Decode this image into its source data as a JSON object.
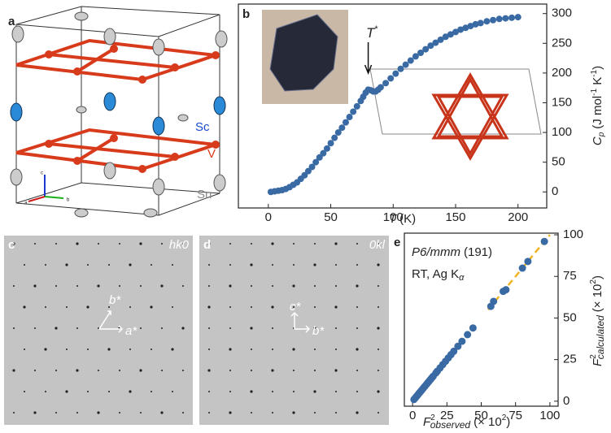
{
  "panel_labels": [
    "a",
    "b",
    "c",
    "d",
    "e"
  ],
  "structure": {
    "atoms": [
      "Sc",
      "V",
      "Sn"
    ],
    "axes": [
      "c",
      "a",
      "b"
    ]
  },
  "diffraction": [
    {
      "plane": "hk0",
      "vectors": [
        "b*",
        "a*"
      ]
    },
    {
      "plane": "0kl",
      "vectors": [
        "c*",
        "b*"
      ]
    }
  ],
  "chart_data": [
    {
      "type": "scatter",
      "color": "#3a6aa3",
      "x_label": [
        "T",
        "(K)"
      ],
      "y_label": [
        "C",
        "p",
        "(J mol",
        "-1",
        " K",
        "-1",
        ")"
      ],
      "annotation": [
        "T",
        "*"
      ],
      "annotation_x": 80,
      "x": [
        2,
        5,
        8,
        11,
        14,
        17,
        20,
        23,
        26,
        29,
        32,
        35,
        38,
        41,
        44,
        47,
        50,
        53,
        56,
        59,
        62,
        65,
        68,
        71,
        74,
        76,
        78,
        80,
        82,
        84,
        86,
        88,
        90,
        94,
        98,
        102,
        106,
        110,
        114,
        118,
        122,
        126,
        130,
        134,
        138,
        142,
        146,
        150,
        154,
        158,
        162,
        166,
        170,
        175,
        180,
        185,
        190,
        195,
        200
      ],
      "values": [
        0,
        1,
        2,
        3,
        5,
        8,
        12,
        16,
        22,
        28,
        35,
        42,
        50,
        58,
        65,
        73,
        82,
        91,
        100,
        108,
        117,
        126,
        135,
        144,
        153,
        160,
        167,
        172,
        171,
        169,
        169,
        172,
        176,
        183,
        191,
        199,
        207,
        214,
        221,
        228,
        234,
        240,
        246,
        251,
        256,
        261,
        265,
        269,
        273,
        276,
        279,
        282,
        284,
        287,
        289,
        291,
        292,
        293,
        294
      ],
      "xlim": [
        -24,
        223
      ],
      "ylim": [
        -27,
        316
      ],
      "xticks": [
        0,
        50,
        100,
        150,
        200
      ],
      "yticks": [
        0,
        50,
        100,
        150,
        200,
        250,
        300
      ]
    },
    {
      "type": "scatter",
      "color": "#3a6aa3",
      "annotations": [
        [
          "P6/mmm",
          "(191)"
        ],
        [
          "RT, Ag K",
          "α"
        ]
      ],
      "x_label": [
        "F",
        "2",
        "observed",
        "(× 10",
        "2",
        ")"
      ],
      "y_label": [
        "F",
        "2",
        "calculated",
        "(× 10",
        "2",
        ")"
      ],
      "x": [
        1,
        2,
        3,
        4,
        5,
        6,
        7,
        8,
        9,
        10,
        11,
        12,
        13,
        14,
        15,
        17,
        18,
        20,
        22,
        24,
        26,
        28,
        30,
        33,
        36,
        40,
        44,
        57,
        59,
        66,
        68,
        80,
        84,
        96
      ],
      "values": [
        1,
        2,
        3,
        4,
        5,
        6,
        7,
        8,
        9,
        10,
        11,
        12,
        13,
        14,
        15,
        17,
        18,
        20,
        22,
        24,
        26,
        28,
        30,
        33,
        36,
        40,
        44,
        57,
        60,
        66,
        67,
        80,
        84,
        96
      ],
      "fit": {
        "color": "#f0b324",
        "x": [
          55,
          100
        ],
        "y": [
          55,
          100
        ]
      },
      "xlim": [
        -6,
        106
      ],
      "ylim": [
        -3,
        101
      ],
      "xticks": [
        0,
        25,
        50,
        75,
        100
      ],
      "yticks": [
        0,
        25,
        50,
        75,
        100
      ]
    }
  ]
}
